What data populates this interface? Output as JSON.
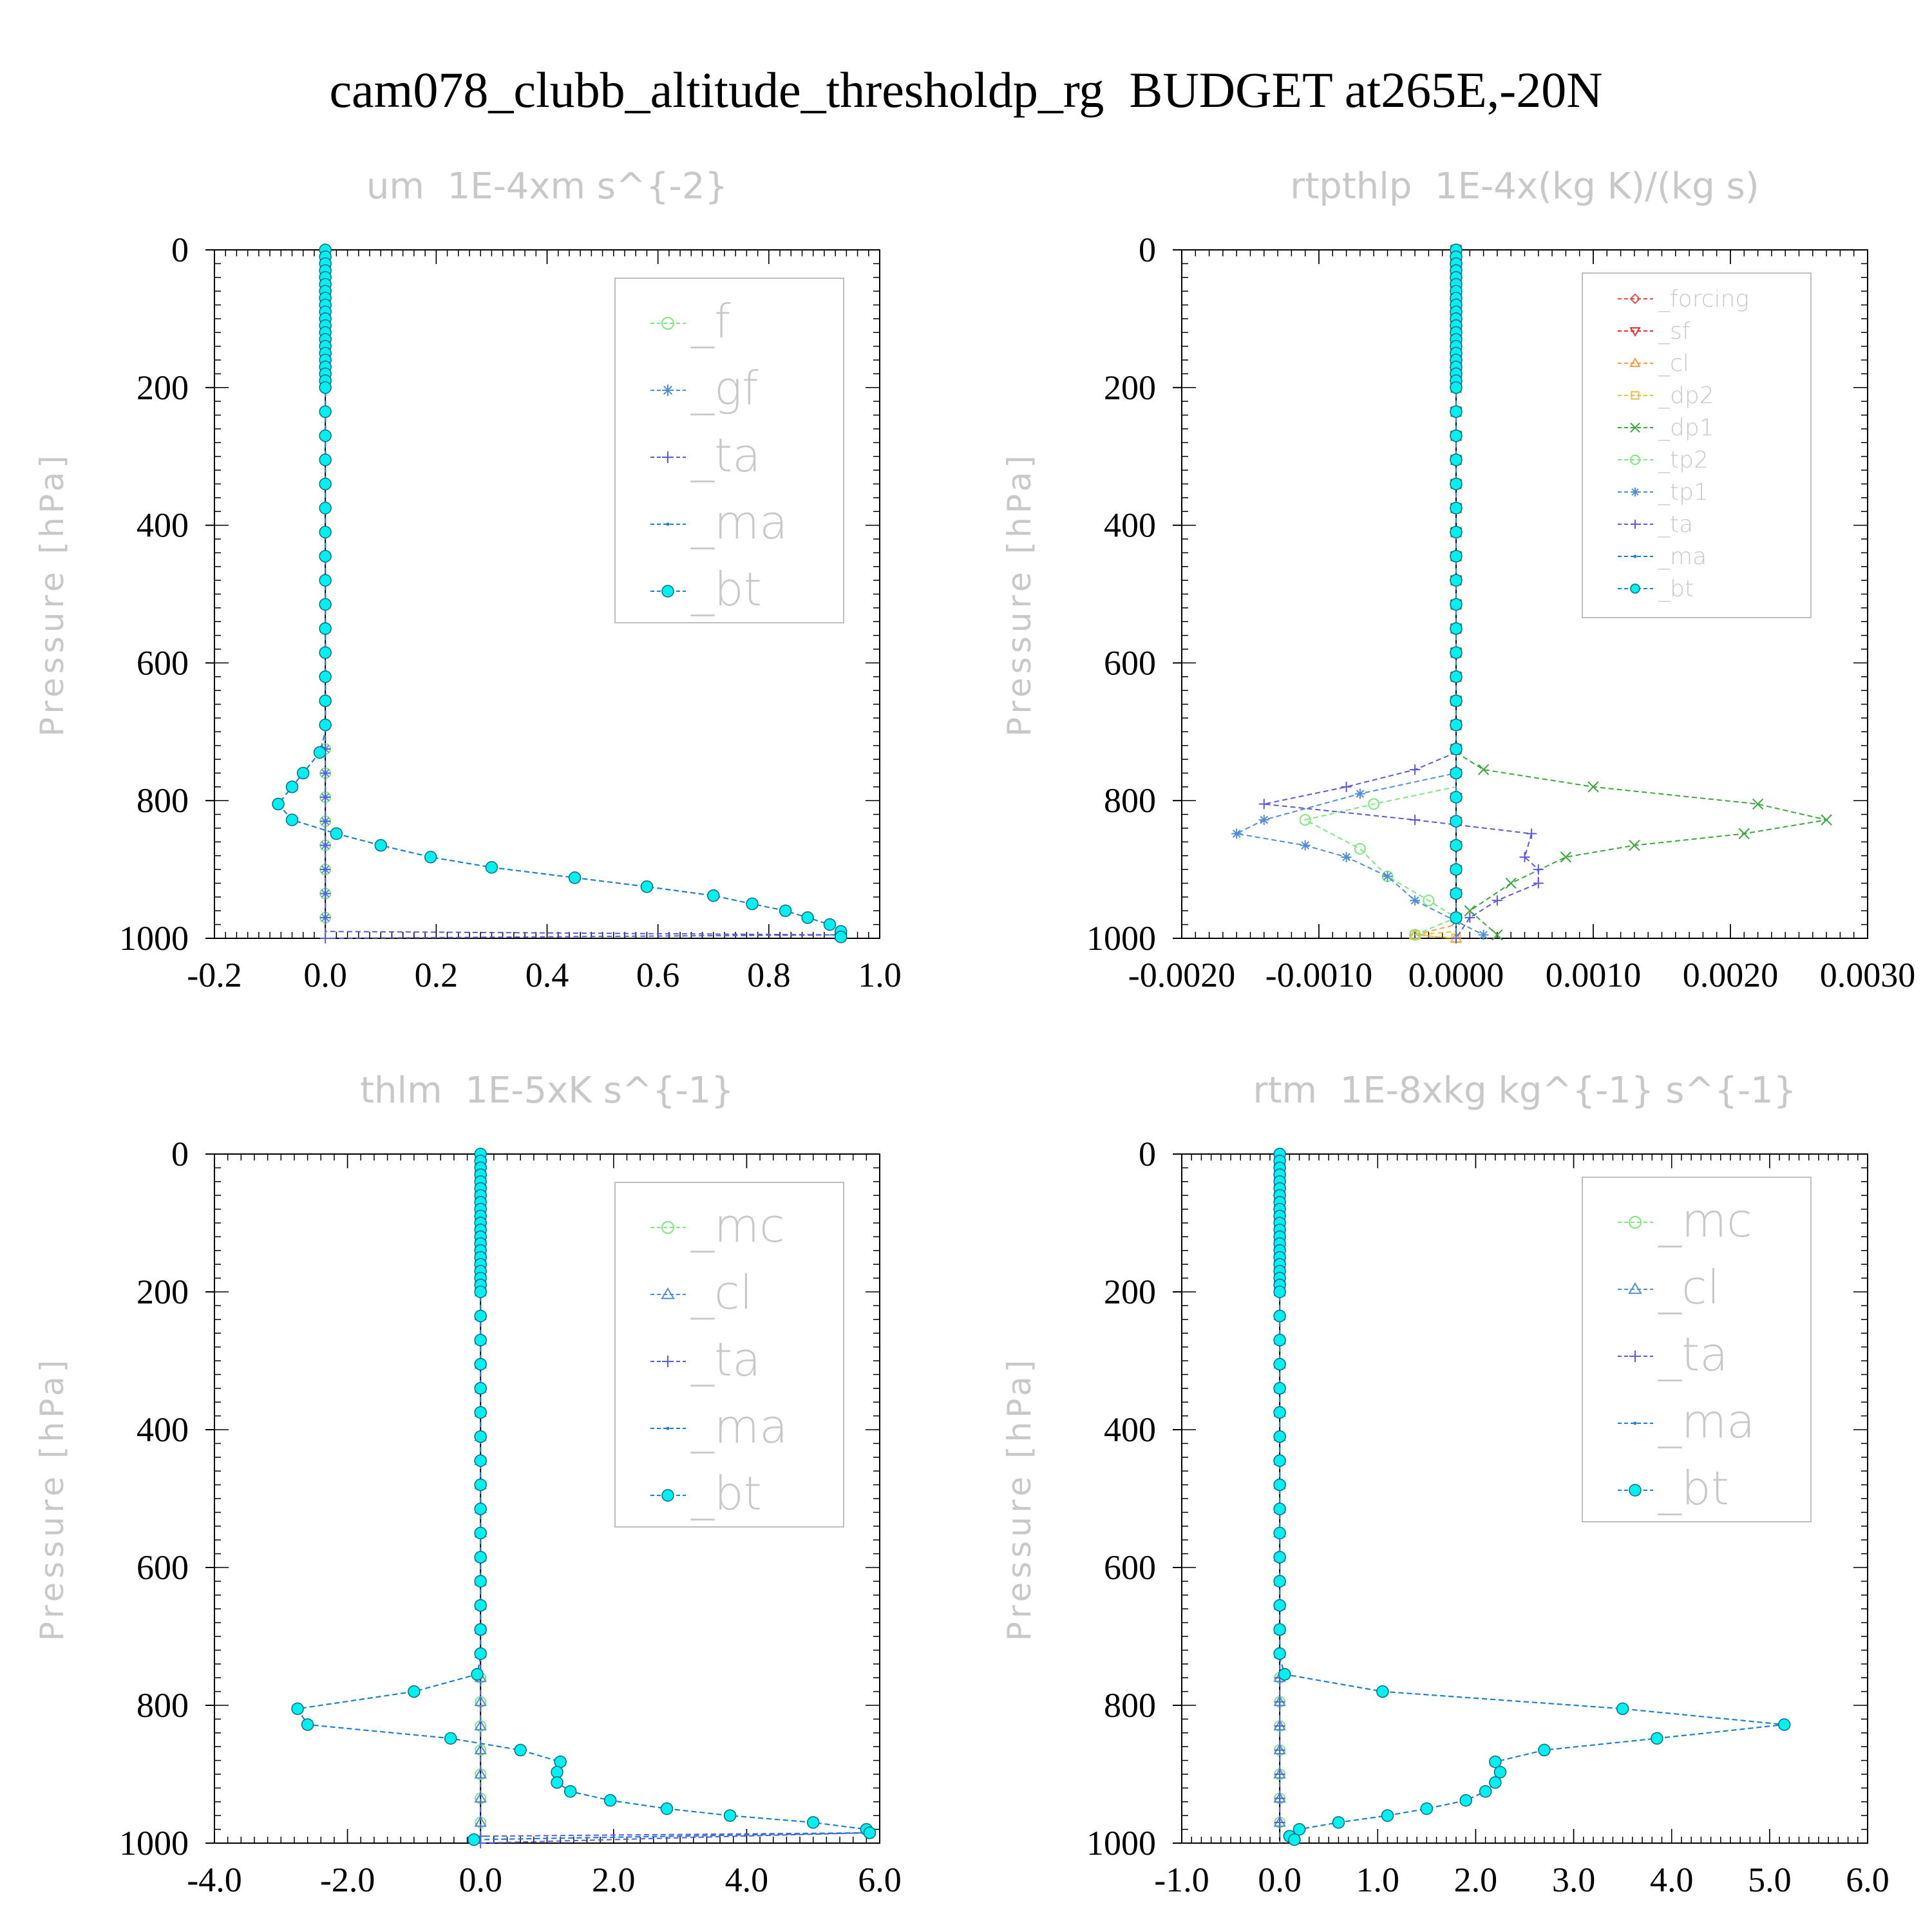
{
  "title": "cam078_clubb_altitude_thresholdp_rg  BUDGET at265E,-20N",
  "colors": {
    "_f": "#7de87d",
    "_gf": "#4f8fd6",
    "_ta": "#5a5ad8",
    "_ma": "#1a7fd6",
    "_bt": "#00f0f0",
    "_mc": "#7de87d",
    "_cl_lower": "#4f8fd6",
    "_forcing": "#e05050",
    "_sf": "#e03030",
    "_cl": "#f0a040",
    "_dp2": "#e8c040",
    "_dp1": "#3aa83a",
    "_tp2": "#7de87d",
    "_tp1": "#4f8fd6"
  },
  "chart_data": [
    {
      "type": "line",
      "title": "um  1E-4xm s^{-2}",
      "ylabel": "Pressure [hPa]",
      "xlim": [
        -0.2,
        1.0
      ],
      "ylim": [
        1000,
        0
      ],
      "xticks": [
        "-0.2",
        "0.0",
        "0.2",
        "0.4",
        "0.6",
        "0.8",
        "1.0"
      ],
      "yticks": [
        "0",
        "200",
        "400",
        "600",
        "800",
        "1000"
      ],
      "legend": {
        "placement": "top-right",
        "entries": [
          "_f",
          "_gf",
          "_ta",
          "_ma",
          "_bt"
        ]
      },
      "series": [
        {
          "name": "_f",
          "values": [
            [
              0.0,
              0
            ],
            [
              0.0,
              1000
            ]
          ]
        },
        {
          "name": "_gf",
          "values": [
            [
              0.0,
              0
            ],
            [
              0.0,
              1000
            ]
          ]
        },
        {
          "name": "_ta",
          "values": [
            [
              0.0,
              0
            ],
            [
              0.0,
              990
            ],
            [
              0.92,
              995
            ],
            [
              0.0,
              1000
            ]
          ]
        },
        {
          "name": "_ma",
          "values": [
            [
              0.0,
              0
            ],
            [
              0.0,
              700
            ],
            [
              -0.01,
              730
            ],
            [
              -0.04,
              760
            ],
            [
              -0.06,
              780
            ],
            [
              -0.085,
              805
            ],
            [
              -0.06,
              828
            ],
            [
              0.02,
              848
            ],
            [
              0.1,
              865
            ],
            [
              0.19,
              882
            ],
            [
              0.3,
              897
            ],
            [
              0.45,
              912
            ],
            [
              0.58,
              925
            ],
            [
              0.7,
              938
            ],
            [
              0.77,
              950
            ],
            [
              0.83,
              960
            ],
            [
              0.87,
              970
            ],
            [
              0.91,
              980
            ],
            [
              0.93,
              990
            ],
            [
              0.93,
              998
            ]
          ]
        },
        {
          "name": "_bt",
          "values": [
            [
              0.0,
              0
            ],
            [
              0.0,
              700
            ],
            [
              -0.01,
              730
            ],
            [
              -0.04,
              760
            ],
            [
              -0.06,
              780
            ],
            [
              -0.085,
              805
            ],
            [
              -0.06,
              828
            ],
            [
              0.02,
              848
            ],
            [
              0.1,
              865
            ],
            [
              0.19,
              882
            ],
            [
              0.3,
              897
            ],
            [
              0.45,
              912
            ],
            [
              0.58,
              925
            ],
            [
              0.7,
              938
            ],
            [
              0.77,
              950
            ],
            [
              0.83,
              960
            ],
            [
              0.87,
              970
            ],
            [
              0.91,
              980
            ],
            [
              0.93,
              990
            ],
            [
              0.93,
              998
            ]
          ]
        }
      ]
    },
    {
      "type": "line",
      "title": "rtpthlp  1E-4x(kg K)/(kg s)",
      "ylabel": "Pressure [hPa]",
      "xlim": [
        -0.002,
        0.003
      ],
      "ylim": [
        1000,
        0
      ],
      "xticks": [
        "-0.0020",
        "-0.0010",
        "0.0000",
        "0.0010",
        "0.0020",
        "0.0030"
      ],
      "yticks": [
        "0",
        "200",
        "400",
        "600",
        "800",
        "1000"
      ],
      "legend": {
        "placement": "top-right",
        "entries": [
          "_forcing",
          "_sf",
          "_cl",
          "_dp2",
          "_dp1",
          "_tp2",
          "_tp1",
          "_ta",
          "_ma",
          "_bt"
        ]
      },
      "series": [
        {
          "name": "_forcing",
          "values": [
            [
              0.0,
              0
            ],
            [
              0.0,
              1000
            ]
          ]
        },
        {
          "name": "_sf",
          "values": [
            [
              0.0,
              0
            ],
            [
              0.0,
              1000
            ]
          ]
        },
        {
          "name": "_cl",
          "values": [
            [
              0.0,
              0
            ],
            [
              0.0,
              980
            ],
            [
              -0.0003,
              995
            ],
            [
              0.0,
              1000
            ]
          ]
        },
        {
          "name": "_dp2",
          "values": [
            [
              0.0,
              0
            ],
            [
              0.0,
              990
            ],
            [
              -0.0003,
              995
            ],
            [
              0.0,
              1000
            ]
          ]
        },
        {
          "name": "_dp1",
          "values": [
            [
              0.0,
              0
            ],
            [
              0.0,
              730
            ],
            [
              0.0002,
              755
            ],
            [
              0.001,
              780
            ],
            [
              0.0022,
              805
            ],
            [
              0.0027,
              828
            ],
            [
              0.0021,
              848
            ],
            [
              0.0013,
              865
            ],
            [
              0.0008,
              882
            ],
            [
              0.0004,
              920
            ],
            [
              0.0001,
              960
            ],
            [
              0.0003,
              995
            ]
          ]
        },
        {
          "name": "_tp2",
          "values": [
            [
              0.0,
              0
            ],
            [
              0.0,
              780
            ],
            [
              -0.0006,
              805
            ],
            [
              -0.0011,
              828
            ],
            [
              -0.0007,
              870
            ],
            [
              -0.0005,
              910
            ],
            [
              -0.0002,
              945
            ],
            [
              0.0,
              970
            ],
            [
              -0.0003,
              995
            ]
          ]
        },
        {
          "name": "_tp1",
          "values": [
            [
              0.0,
              0
            ],
            [
              0.0,
              760
            ],
            [
              -0.0007,
              790
            ],
            [
              -0.0014,
              828
            ],
            [
              -0.0016,
              848
            ],
            [
              -0.0011,
              865
            ],
            [
              -0.0008,
              882
            ],
            [
              -0.0005,
              910
            ],
            [
              -0.0003,
              945
            ],
            [
              0.0,
              975
            ],
            [
              0.0002,
              995
            ]
          ]
        },
        {
          "name": "_ta",
          "values": [
            [
              0.0,
              0
            ],
            [
              0.0,
              730
            ],
            [
              -0.0003,
              755
            ],
            [
              -0.0008,
              780
            ],
            [
              -0.0014,
              805
            ],
            [
              -0.0003,
              828
            ],
            [
              0.00055,
              848
            ],
            [
              0.0005,
              882
            ],
            [
              0.0006,
              900
            ],
            [
              0.0006,
              920
            ],
            [
              0.0003,
              945
            ],
            [
              0.0001,
              970
            ],
            [
              0.0,
              1000
            ]
          ]
        },
        {
          "name": "_ma",
          "values": [
            [
              0.0,
              0
            ],
            [
              0.0,
              1000
            ]
          ]
        },
        {
          "name": "_bt",
          "values": [
            [
              0.0,
              0
            ],
            [
              0.0,
              1000
            ]
          ]
        }
      ]
    },
    {
      "type": "line",
      "title": "thlm  1E-5xK s^{-1}",
      "ylabel": "Pressure [hPa]",
      "xlim": [
        -4.0,
        6.0
      ],
      "ylim": [
        1000,
        0
      ],
      "xticks": [
        "-4.0",
        "-2.0",
        "0.0",
        "2.0",
        "4.0",
        "6.0"
      ],
      "yticks": [
        "0",
        "200",
        "400",
        "600",
        "800",
        "1000"
      ],
      "legend": {
        "placement": "top-right",
        "entries": [
          "_mc",
          "_cl",
          "_ta",
          "_ma",
          "_bt"
        ]
      },
      "series": [
        {
          "name": "_mc",
          "values": [
            [
              0.0,
              0
            ],
            [
              0.0,
              1000
            ]
          ]
        },
        {
          "name": "_cl",
          "values": [
            [
              0.0,
              0
            ],
            [
              0.0,
              1000
            ]
          ]
        },
        {
          "name": "_ta",
          "values": [
            [
              0.0,
              0
            ],
            [
              0.0,
              990
            ],
            [
              5.8,
              985
            ],
            [
              0.0,
              1000
            ]
          ]
        },
        {
          "name": "_ma",
          "values": [
            [
              0.0,
              0
            ],
            [
              0.0,
              730
            ],
            [
              -0.05,
              755
            ],
            [
              -1.0,
              780
            ],
            [
              -2.75,
              805
            ],
            [
              -2.6,
              828
            ],
            [
              -0.45,
              848
            ],
            [
              0.6,
              865
            ],
            [
              1.2,
              882
            ],
            [
              1.15,
              897
            ],
            [
              1.15,
              912
            ],
            [
              1.35,
              925
            ],
            [
              1.95,
              938
            ],
            [
              2.8,
              950
            ],
            [
              3.75,
              960
            ],
            [
              5.0,
              970
            ],
            [
              5.8,
              980
            ],
            [
              5.85,
              985
            ],
            [
              -0.1,
              995
            ]
          ]
        },
        {
          "name": "_bt",
          "values": [
            [
              0.0,
              0
            ],
            [
              0.0,
              730
            ],
            [
              -0.05,
              755
            ],
            [
              -1.0,
              780
            ],
            [
              -2.75,
              805
            ],
            [
              -2.6,
              828
            ],
            [
              -0.45,
              848
            ],
            [
              0.6,
              865
            ],
            [
              1.2,
              882
            ],
            [
              1.15,
              897
            ],
            [
              1.15,
              912
            ],
            [
              1.35,
              925
            ],
            [
              1.95,
              938
            ],
            [
              2.8,
              950
            ],
            [
              3.75,
              960
            ],
            [
              5.0,
              970
            ],
            [
              5.8,
              980
            ],
            [
              5.85,
              985
            ],
            [
              -0.1,
              995
            ]
          ]
        }
      ]
    },
    {
      "type": "line",
      "title": "rtm  1E-8xkg kg^{-1} s^{-1}",
      "ylabel": "Pressure [hPa]",
      "xlim": [
        -1.0,
        6.0
      ],
      "ylim": [
        1000,
        0
      ],
      "xticks": [
        "-1.0",
        "0.0",
        "1.0",
        "2.0",
        "3.0",
        "4.0",
        "5.0",
        "6.0"
      ],
      "yticks": [
        "0",
        "200",
        "400",
        "600",
        "800",
        "1000"
      ],
      "legend": {
        "placement": "top-right",
        "entries": [
          "_mc",
          "_cl",
          "_ta",
          "_ma",
          "_bt"
        ]
      },
      "series": [
        {
          "name": "_mc",
          "values": [
            [
              0.0,
              0
            ],
            [
              0.0,
              1000
            ]
          ]
        },
        {
          "name": "_cl",
          "values": [
            [
              0.0,
              0
            ],
            [
              0.0,
              1000
            ]
          ]
        },
        {
          "name": "_ta",
          "values": [
            [
              0.0,
              0
            ],
            [
              0.0,
              1000
            ]
          ]
        },
        {
          "name": "_ma",
          "values": [
            [
              0.0,
              0
            ],
            [
              0.0,
              730
            ],
            [
              0.05,
              755
            ],
            [
              1.05,
              780
            ],
            [
              3.5,
              805
            ],
            [
              5.15,
              828
            ],
            [
              3.85,
              848
            ],
            [
              2.7,
              865
            ],
            [
              2.2,
              882
            ],
            [
              2.25,
              897
            ],
            [
              2.2,
              912
            ],
            [
              2.1,
              925
            ],
            [
              1.9,
              938
            ],
            [
              1.5,
              950
            ],
            [
              1.1,
              960
            ],
            [
              0.6,
              970
            ],
            [
              0.2,
              980
            ],
            [
              0.1,
              990
            ],
            [
              0.15,
              995
            ]
          ]
        },
        {
          "name": "_bt",
          "values": [
            [
              0.0,
              0
            ],
            [
              0.0,
              730
            ],
            [
              0.05,
              755
            ],
            [
              1.05,
              780
            ],
            [
              3.5,
              805
            ],
            [
              5.15,
              828
            ],
            [
              3.85,
              848
            ],
            [
              2.7,
              865
            ],
            [
              2.2,
              882
            ],
            [
              2.25,
              897
            ],
            [
              2.2,
              912
            ],
            [
              2.1,
              925
            ],
            [
              1.9,
              938
            ],
            [
              1.5,
              950
            ],
            [
              1.1,
              960
            ],
            [
              0.6,
              970
            ],
            [
              0.2,
              980
            ],
            [
              0.1,
              990
            ],
            [
              0.15,
              995
            ]
          ]
        }
      ]
    }
  ]
}
